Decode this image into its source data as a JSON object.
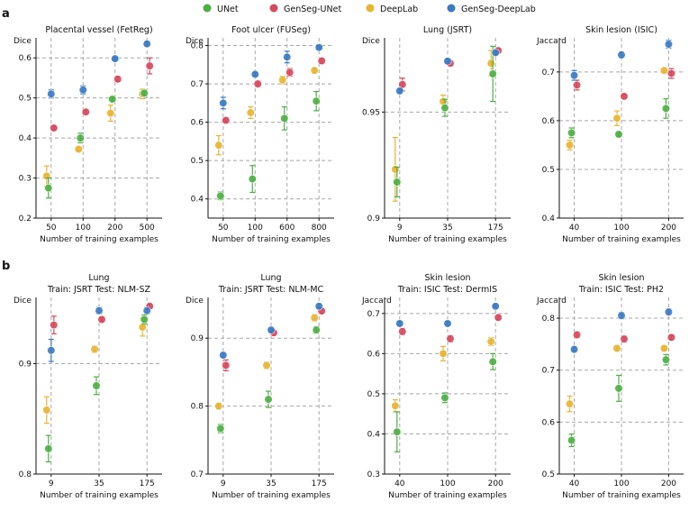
{
  "figure": {
    "legend": [
      "UNet",
      "GenSeg-UNet",
      "DeepLab",
      "GenSeg-DeepLab"
    ],
    "panel_letters": [
      "a",
      "b"
    ]
  },
  "colors": {
    "UNet": "#4caf42",
    "GenSeg-UNet": "#d6485c",
    "DeepLab": "#e8b431",
    "GenSeg-DeepLab": "#3a7ac2",
    "grid": "#a8a8a8"
  },
  "chart_data": [
    {
      "type": "scatter",
      "title": "Placental vessel (FetReg)",
      "subtitle": "",
      "xlabel": "Number of training examples",
      "ylabel": "Dice",
      "categories": [
        "50",
        "100",
        "200",
        "500"
      ],
      "ylim": [
        0.2,
        0.65
      ],
      "yticks": [
        0.2,
        0.3,
        0.4,
        0.5,
        0.6
      ],
      "grid": true,
      "series": [
        {
          "name": "UNet",
          "values": [
            0.275,
            0.4,
            0.497,
            0.512
          ],
          "err": [
            0.025,
            0.012,
            0.004,
            0.008
          ]
        },
        {
          "name": "GenSeg-UNet",
          "values": [
            0.425,
            0.465,
            0.547,
            0.58
          ],
          "err": [
            0.004,
            0.004,
            0.006,
            0.02
          ]
        },
        {
          "name": "DeepLab",
          "values": [
            0.305,
            0.372,
            0.462,
            0.51
          ],
          "err": [
            0.025,
            0.004,
            0.02,
            0.012
          ]
        },
        {
          "name": "GenSeg-DeepLab",
          "values": [
            0.51,
            0.52,
            0.598,
            0.635
          ],
          "err": [
            0.01,
            0.01,
            0.003,
            0.004
          ]
        }
      ]
    },
    {
      "type": "scatter",
      "title": "Foot ulcer (FUSeg)",
      "subtitle": "",
      "xlabel": "Number of training examples",
      "ylabel": "Dice",
      "categories": [
        "50",
        "100",
        "600",
        "800"
      ],
      "ylim": [
        0.35,
        0.82
      ],
      "yticks": [
        0.4,
        0.5,
        0.6,
        0.7,
        0.8
      ],
      "grid": true,
      "series": [
        {
          "name": "UNet",
          "values": [
            0.408,
            0.452,
            0.61,
            0.655
          ],
          "err": [
            0.01,
            0.035,
            0.03,
            0.025
          ]
        },
        {
          "name": "GenSeg-UNet",
          "values": [
            0.605,
            0.7,
            0.73,
            0.76
          ],
          "err": [
            0.004,
            0.008,
            0.01,
            0.006
          ]
        },
        {
          "name": "DeepLab",
          "values": [
            0.54,
            0.625,
            0.71,
            0.735
          ],
          "err": [
            0.025,
            0.015,
            0.01,
            0.006
          ]
        },
        {
          "name": "GenSeg-DeepLab",
          "values": [
            0.65,
            0.725,
            0.77,
            0.795
          ],
          "err": [
            0.015,
            0.004,
            0.015,
            0.003
          ]
        }
      ]
    },
    {
      "type": "scatter",
      "title": "Lung (JSRT)",
      "subtitle": "",
      "xlabel": "Number of training examples",
      "ylabel": "Dice",
      "categories": [
        "9",
        "35",
        "175"
      ],
      "ylim": [
        0.9,
        0.985
      ],
      "yticks": [
        0.9,
        0.95
      ],
      "grid": true,
      "series": [
        {
          "name": "UNet",
          "values": [
            0.917,
            0.952,
            0.968
          ],
          "err": [
            0.007,
            0.004,
            0.013
          ]
        },
        {
          "name": "GenSeg-UNet",
          "values": [
            0.963,
            0.973,
            0.979
          ],
          "err": [
            0.003,
            0.001,
            0.001
          ]
        },
        {
          "name": "DeepLab",
          "values": [
            0.923,
            0.955,
            0.973
          ],
          "err": [
            0.015,
            0.003,
            0.006
          ]
        },
        {
          "name": "GenSeg-DeepLab",
          "values": [
            0.96,
            0.974,
            0.978
          ],
          "err": [
            0.001,
            0.001,
            0.001
          ]
        }
      ]
    },
    {
      "type": "scatter",
      "title": "Skin lesion (ISIC)",
      "subtitle": "",
      "xlabel": "Number of training examples",
      "ylabel": "Jaccard",
      "categories": [
        "40",
        "100",
        "200"
      ],
      "ylim": [
        0.4,
        0.77
      ],
      "yticks": [
        0.4,
        0.5,
        0.6,
        0.7
      ],
      "grid": true,
      "series": [
        {
          "name": "UNet",
          "values": [
            0.575,
            0.572,
            0.625
          ],
          "err": [
            0.01,
            0.004,
            0.02
          ]
        },
        {
          "name": "GenSeg-UNet",
          "values": [
            0.673,
            0.65,
            0.697
          ],
          "err": [
            0.01,
            0.004,
            0.01
          ]
        },
        {
          "name": "DeepLab",
          "values": [
            0.55,
            0.605,
            0.703
          ],
          "err": [
            0.01,
            0.015,
            0.004
          ]
        },
        {
          "name": "GenSeg-DeepLab",
          "values": [
            0.693,
            0.735,
            0.757
          ],
          "err": [
            0.01,
            0.006,
            0.008
          ]
        }
      ]
    },
    {
      "type": "scatter",
      "title": "Lung",
      "subtitle": "Train: JSRT   Test: NLM-SZ",
      "xlabel": "Number of training examples",
      "ylabel": "Dice",
      "categories": [
        "9",
        "35",
        "175"
      ],
      "ylim": [
        0.8,
        0.96
      ],
      "yticks": [
        0.8,
        0.9
      ],
      "grid": true,
      "series": [
        {
          "name": "UNet",
          "values": [
            0.823,
            0.88,
            0.94
          ],
          "err": [
            0.012,
            0.008,
            0.004
          ]
        },
        {
          "name": "GenSeg-UNet",
          "values": [
            0.935,
            0.94,
            0.952
          ],
          "err": [
            0.008,
            0.002,
            0.002
          ]
        },
        {
          "name": "DeepLab",
          "values": [
            0.858,
            0.913,
            0.933
          ],
          "err": [
            0.012,
            0.003,
            0.008
          ]
        },
        {
          "name": "GenSeg-DeepLab",
          "values": [
            0.912,
            0.948,
            0.948
          ],
          "err": [
            0.01,
            0.003,
            0.003
          ]
        }
      ]
    },
    {
      "type": "scatter",
      "title": "Lung",
      "subtitle": "Train: JSRT   Test: NLM-MC",
      "xlabel": "Number of training examples",
      "ylabel": "Dice",
      "categories": [
        "9",
        "35",
        "175"
      ],
      "ylim": [
        0.7,
        0.96
      ],
      "yticks": [
        0.7,
        0.8,
        0.9
      ],
      "grid": true,
      "series": [
        {
          "name": "UNet",
          "values": [
            0.767,
            0.81,
            0.912
          ],
          "err": [
            0.006,
            0.012,
            0.005
          ]
        },
        {
          "name": "GenSeg-UNet",
          "values": [
            0.86,
            0.908,
            0.94
          ],
          "err": [
            0.008,
            0.004,
            0.003
          ]
        },
        {
          "name": "DeepLab",
          "values": [
            0.8,
            0.86,
            0.93
          ],
          "err": [
            0.004,
            0.005,
            0.005
          ]
        },
        {
          "name": "GenSeg-DeepLab",
          "values": [
            0.875,
            0.912,
            0.947
          ],
          "err": [
            0.003,
            0.002,
            0.003
          ]
        }
      ]
    },
    {
      "type": "scatter",
      "title": "Skin lesion",
      "subtitle": "Train: ISIC   Test: DermIS",
      "xlabel": "Number of training examples",
      "ylabel": "Jaccard",
      "categories": [
        "40",
        "100",
        "200"
      ],
      "ylim": [
        0.3,
        0.74
      ],
      "yticks": [
        0.3,
        0.4,
        0.5,
        0.6,
        0.7
      ],
      "grid": true,
      "series": [
        {
          "name": "UNet",
          "values": [
            0.405,
            0.49,
            0.58
          ],
          "err": [
            0.05,
            0.012,
            0.02
          ]
        },
        {
          "name": "GenSeg-UNet",
          "values": [
            0.655,
            0.637,
            0.69
          ],
          "err": [
            0.008,
            0.008,
            0.005
          ]
        },
        {
          "name": "DeepLab",
          "values": [
            0.47,
            0.6,
            0.63
          ],
          "err": [
            0.015,
            0.018,
            0.01
          ]
        },
        {
          "name": "GenSeg-DeepLab",
          "values": [
            0.675,
            0.675,
            0.718
          ],
          "err": [
            0.005,
            0.004,
            0.003
          ]
        }
      ]
    },
    {
      "type": "scatter",
      "title": "Skin lesion",
      "subtitle": "Train: ISIC   Test: PH2",
      "xlabel": "Number of training examples",
      "ylabel": "Jaccard",
      "categories": [
        "40",
        "100",
        "200"
      ],
      "ylim": [
        0.5,
        0.84
      ],
      "yticks": [
        0.5,
        0.6,
        0.7,
        0.8
      ],
      "grid": true,
      "series": [
        {
          "name": "UNet",
          "values": [
            0.565,
            0.665,
            0.72
          ],
          "err": [
            0.012,
            0.025,
            0.01
          ]
        },
        {
          "name": "GenSeg-UNet",
          "values": [
            0.768,
            0.76,
            0.763
          ],
          "err": [
            0.006,
            0.006,
            0.004
          ]
        },
        {
          "name": "DeepLab",
          "values": [
            0.635,
            0.742,
            0.742
          ],
          "err": [
            0.015,
            0.004,
            0.004
          ]
        },
        {
          "name": "GenSeg-DeepLab",
          "values": [
            0.74,
            0.805,
            0.812
          ],
          "err": [
            0.005,
            0.006,
            0.006
          ]
        }
      ]
    }
  ]
}
